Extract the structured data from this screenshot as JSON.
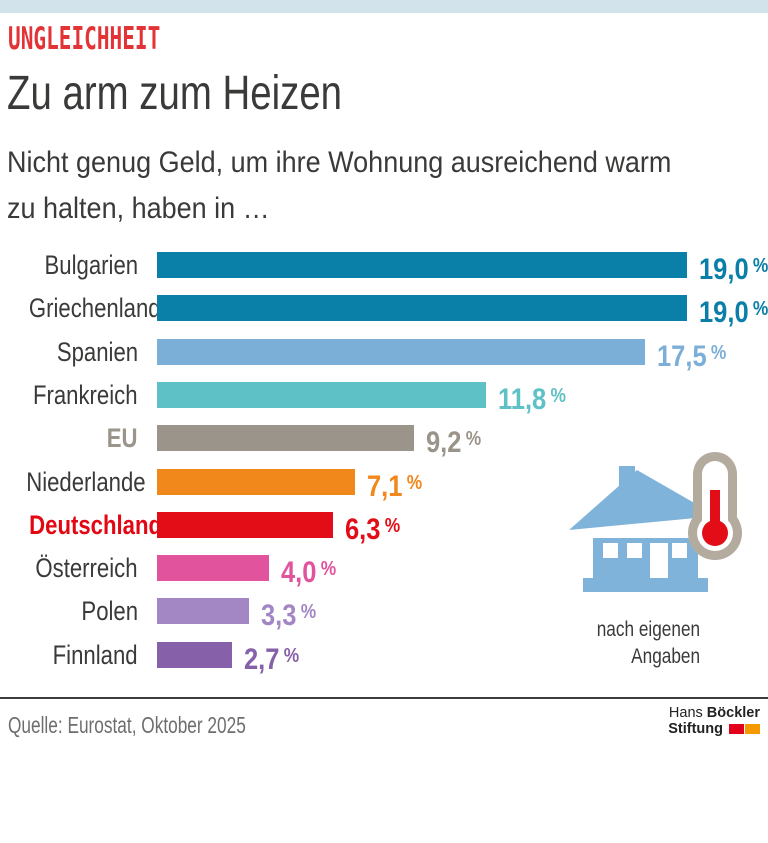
{
  "accents": {
    "top_strip_color": "#d2e3ec",
    "kicker_color": "#e23337",
    "divider_color": "#3d3d3d"
  },
  "header": {
    "kicker": "UNGLEICHHEIT",
    "title": "Zu arm zum Heizen",
    "subtitle_line1": "Nicht genug Geld, um ihre Wohnung ausreichend warm",
    "subtitle_line2": "zu halten, haben in …"
  },
  "chart_data": {
    "type": "bar",
    "orientation": "horizontal",
    "title": "Zu arm zum Heizen",
    "subtitle": "Nicht genug Geld, um ihre Wohnung ausreichend warm zu halten, haben in …",
    "unit": "%",
    "xlim": [
      0,
      19
    ],
    "value_format": "decimal-comma",
    "grid": false,
    "legend": false,
    "categories": [
      "Bulgarien",
      "Griechenland",
      "Spanien",
      "Frankreich",
      "EU",
      "Niederlande",
      "Deutschland",
      "Österreich",
      "Polen",
      "Finnland"
    ],
    "values": [
      19.0,
      19.0,
      17.5,
      11.8,
      9.2,
      7.1,
      6.3,
      4.0,
      3.3,
      2.7
    ],
    "rows": [
      {
        "label": "Bulgarien",
        "value": 19.0,
        "display": "19,0",
        "color": "#0a7fa8",
        "label_bold": false
      },
      {
        "label": "Griechenland",
        "value": 19.0,
        "display": "19,0",
        "color": "#0a7fa8",
        "label_bold": false
      },
      {
        "label": "Spanien",
        "value": 17.5,
        "display": "17,5",
        "color": "#7cafd7",
        "label_bold": false
      },
      {
        "label": "Frankreich",
        "value": 11.8,
        "display": "11,8",
        "color": "#5ec1c5",
        "label_bold": false
      },
      {
        "label": "EU",
        "value": 9.2,
        "display": "9,2",
        "color": "#9a948a",
        "label_bold": true,
        "label_color": "#9a948a"
      },
      {
        "label": "Niederlande",
        "value": 7.1,
        "display": "7,1",
        "color": "#f0881c",
        "label_bold": false
      },
      {
        "label": "Deutschland",
        "value": 6.3,
        "display": "6,3",
        "color": "#e30d17",
        "label_bold": true,
        "label_color": "#e30613"
      },
      {
        "label": "Österreich",
        "value": 4.0,
        "display": "4,0",
        "color": "#e1539d",
        "label_bold": false
      },
      {
        "label": "Polen",
        "value": 3.3,
        "display": "3,3",
        "color": "#a287c4",
        "label_bold": false
      },
      {
        "label": "Finnland",
        "value": 2.7,
        "display": "2,7",
        "color": "#8660a8",
        "label_bold": false
      }
    ],
    "annotation": "nach eigenen Angaben"
  },
  "annotation": {
    "line1": "nach eigenen",
    "line2": "Angaben"
  },
  "icon": {
    "name": "house-with-thermometer",
    "house_color": "#80b3da",
    "thermo_outline_color": "#b2ab9e",
    "thermo_red_color": "#e30d17"
  },
  "footer": {
    "source": "Quelle: Eurostat, Oktober 2025",
    "logo_hans": "Hans",
    "logo_boeckler": "Böckler",
    "logo_stiftung": "Stiftung",
    "logo_red": "#e2001c",
    "logo_orange": "#f49a00"
  }
}
